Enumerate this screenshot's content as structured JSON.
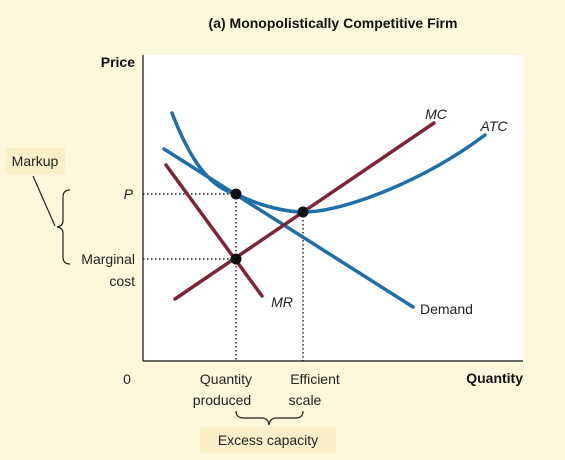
{
  "title": "(a) Monopolistically Competitive Firm",
  "axes": {
    "y_label": "Price",
    "x_label": "Quantity",
    "origin": "0"
  },
  "curves": {
    "mc": "MC",
    "atc": "ATC",
    "mr": "MR",
    "demand": "Demand"
  },
  "price_level": "P",
  "marginal_cost_label": [
    "Marginal",
    "cost"
  ],
  "markup_label": "Markup",
  "quantity_produced_label": [
    "Quantity",
    "produced"
  ],
  "efficient_scale_label": [
    "Efficient",
    "scale"
  ],
  "excess_capacity_label": "Excess capacity",
  "colors": {
    "blue_curves": "#1D6FA9",
    "red_curves": "#7E2434",
    "background": "#FFF7DC",
    "label_box": "#FBEFC8"
  }
}
